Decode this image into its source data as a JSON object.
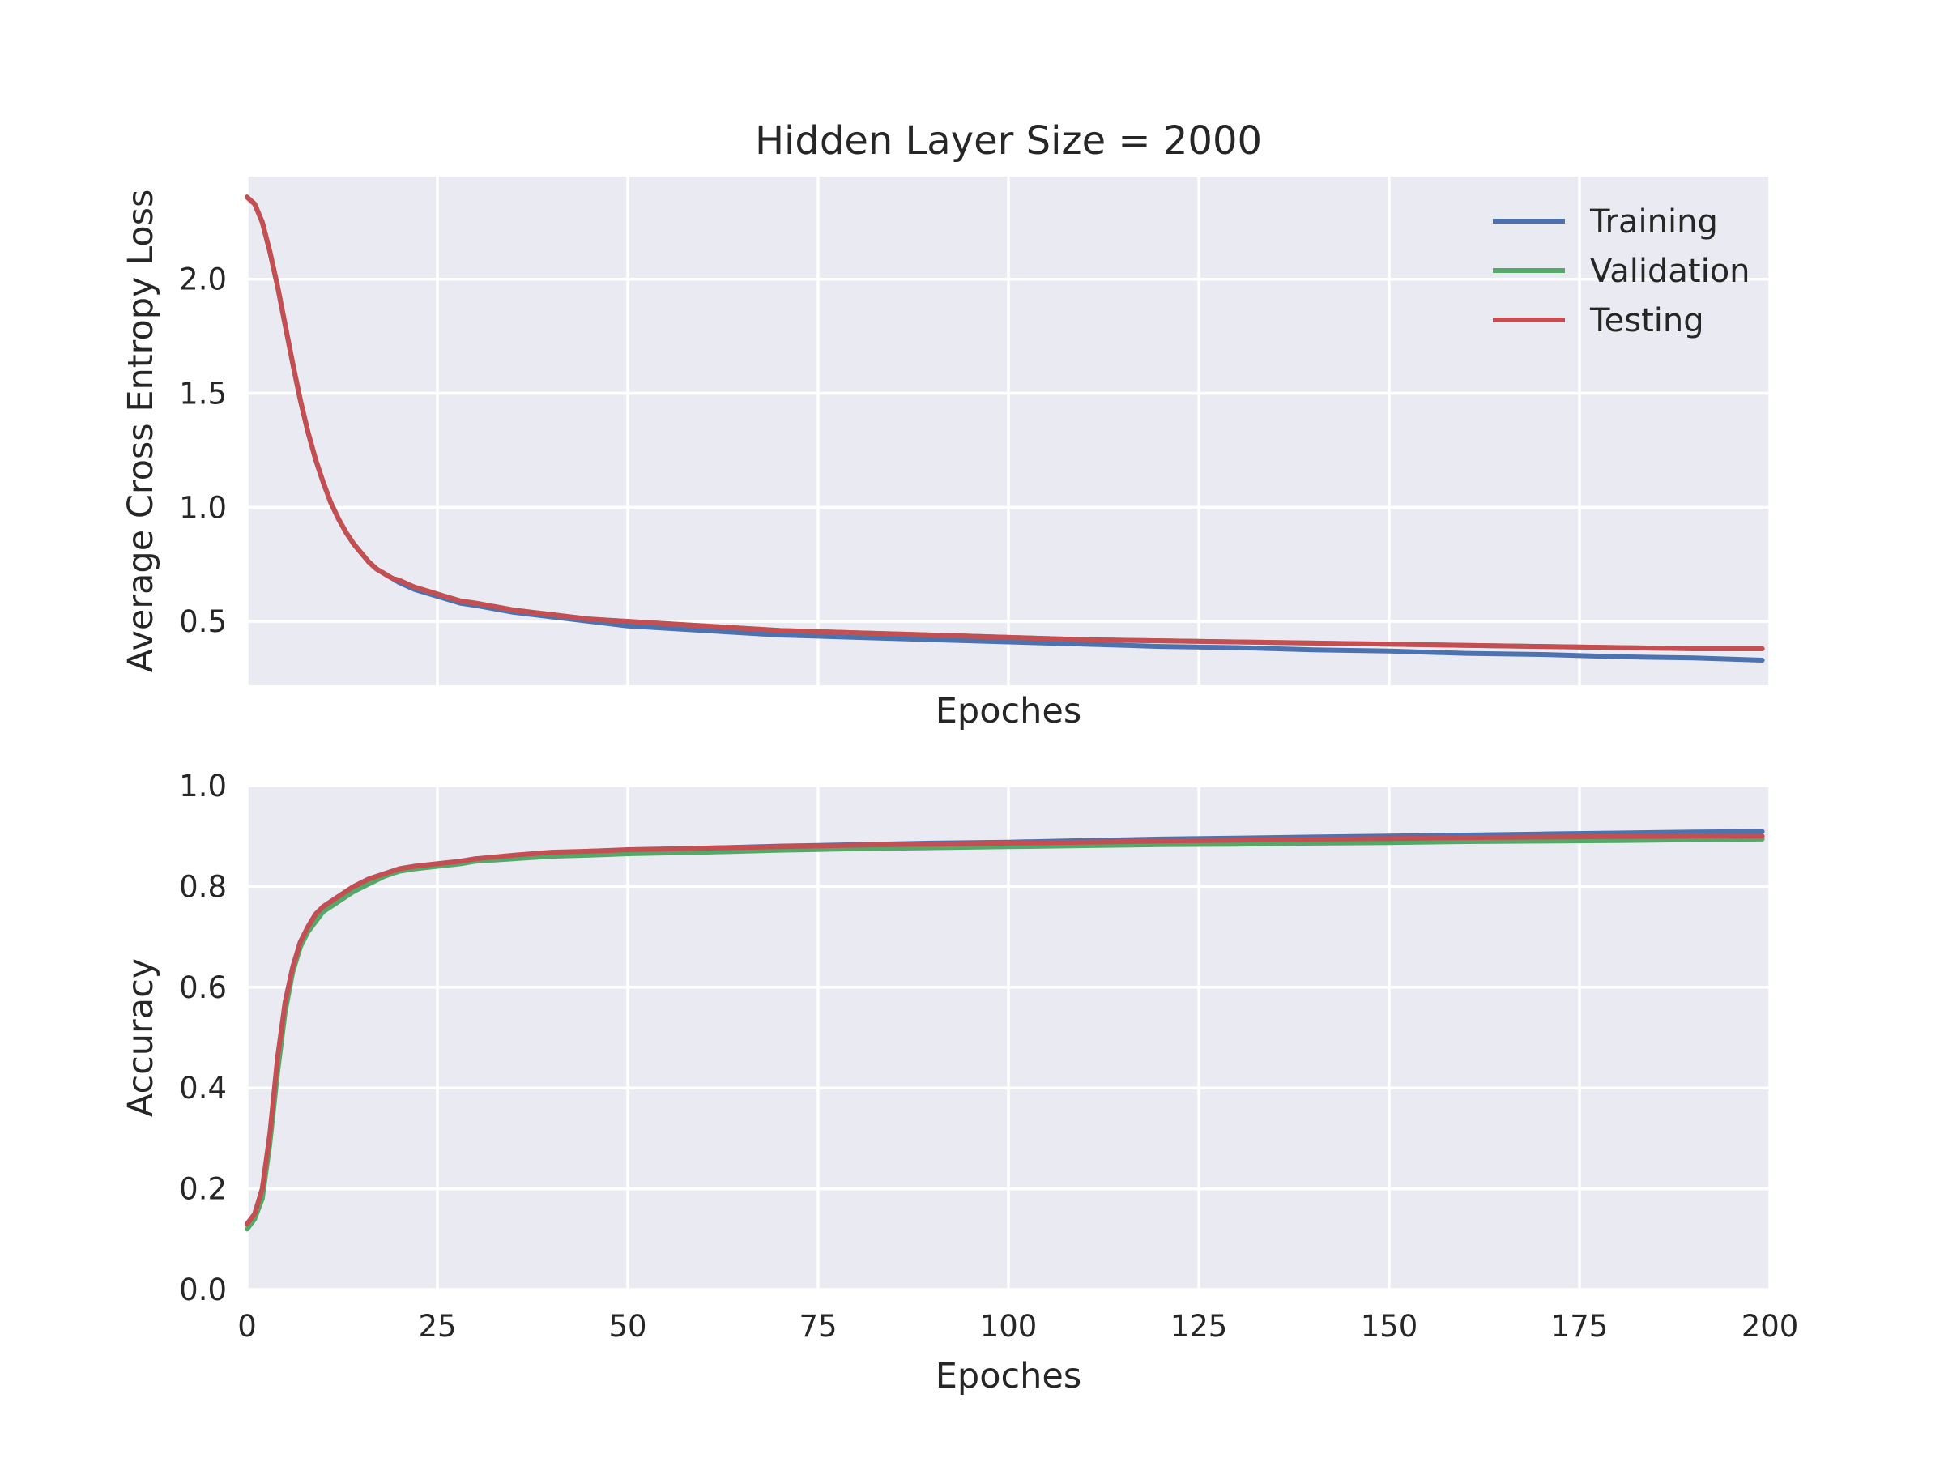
{
  "chart_data": [
    {
      "type": "line",
      "title": "Hidden Layer Size = 2000",
      "xlabel": "Epoches",
      "ylabel": "Average Cross Entropy Loss",
      "xlim": [
        0,
        200
      ],
      "ylim": [
        0.22,
        2.45
      ],
      "xticks": [
        0,
        25,
        50,
        75,
        100,
        125,
        150,
        175,
        200
      ],
      "xtick_labels_visible": false,
      "yticks": [
        0.5,
        1.0,
        1.5,
        2.0
      ],
      "ytick_labels": [
        "0.5",
        "1.0",
        "1.5",
        "2.0"
      ],
      "grid": true,
      "legend": "top-right",
      "x": [
        0,
        1,
        2,
        3,
        4,
        5,
        6,
        7,
        8,
        9,
        10,
        11,
        12,
        13,
        14,
        15,
        16,
        17,
        18,
        19,
        20,
        22,
        24,
        26,
        28,
        30,
        35,
        40,
        45,
        50,
        60,
        70,
        80,
        90,
        100,
        110,
        120,
        130,
        140,
        150,
        160,
        170,
        180,
        190,
        199
      ],
      "series": [
        {
          "name": "Training",
          "color": "#4C72B0",
          "values": [
            2.36,
            2.33,
            2.25,
            2.12,
            1.97,
            1.8,
            1.63,
            1.47,
            1.33,
            1.21,
            1.11,
            1.02,
            0.95,
            0.89,
            0.84,
            0.8,
            0.76,
            0.73,
            0.71,
            0.69,
            0.67,
            0.64,
            0.62,
            0.6,
            0.58,
            0.57,
            0.54,
            0.52,
            0.5,
            0.48,
            0.46,
            0.44,
            0.43,
            0.42,
            0.41,
            0.4,
            0.39,
            0.385,
            0.375,
            0.37,
            0.36,
            0.355,
            0.345,
            0.34,
            0.33
          ]
        },
        {
          "name": "Validation",
          "color": "#55A868",
          "values": [
            2.36,
            2.33,
            2.25,
            2.12,
            1.97,
            1.8,
            1.63,
            1.47,
            1.33,
            1.21,
            1.11,
            1.02,
            0.95,
            0.89,
            0.84,
            0.8,
            0.76,
            0.73,
            0.71,
            0.69,
            0.68,
            0.65,
            0.63,
            0.61,
            0.59,
            0.58,
            0.55,
            0.53,
            0.51,
            0.5,
            0.48,
            0.46,
            0.45,
            0.44,
            0.43,
            0.42,
            0.415,
            0.41,
            0.405,
            0.4,
            0.395,
            0.39,
            0.385,
            0.38,
            0.38
          ]
        },
        {
          "name": "Testing",
          "color": "#C44E52",
          "values": [
            2.36,
            2.33,
            2.25,
            2.12,
            1.97,
            1.8,
            1.63,
            1.47,
            1.33,
            1.21,
            1.11,
            1.02,
            0.95,
            0.89,
            0.84,
            0.8,
            0.76,
            0.73,
            0.71,
            0.69,
            0.68,
            0.65,
            0.63,
            0.61,
            0.59,
            0.58,
            0.55,
            0.53,
            0.51,
            0.5,
            0.48,
            0.46,
            0.45,
            0.44,
            0.43,
            0.42,
            0.415,
            0.41,
            0.405,
            0.4,
            0.395,
            0.39,
            0.385,
            0.38,
            0.38
          ]
        }
      ]
    },
    {
      "type": "line",
      "title": "",
      "xlabel": "Epoches",
      "ylabel": "Accuracy",
      "xlim": [
        0,
        200
      ],
      "ylim": [
        0.0,
        1.0
      ],
      "xticks": [
        0,
        25,
        50,
        75,
        100,
        125,
        150,
        175,
        200
      ],
      "xtick_labels": [
        "0",
        "25",
        "50",
        "75",
        "100",
        "125",
        "150",
        "175",
        "200"
      ],
      "yticks": [
        0.0,
        0.2,
        0.4,
        0.6,
        0.8,
        1.0
      ],
      "ytick_labels": [
        "0.0",
        "0.2",
        "0.4",
        "0.6",
        "0.8",
        "1.0"
      ],
      "grid": true,
      "x": [
        0,
        1,
        2,
        3,
        4,
        5,
        6,
        7,
        8,
        9,
        10,
        12,
        14,
        16,
        18,
        20,
        22,
        25,
        28,
        30,
        35,
        40,
        45,
        50,
        60,
        70,
        80,
        90,
        100,
        110,
        120,
        130,
        140,
        150,
        160,
        170,
        180,
        190,
        199
      ],
      "series": [
        {
          "name": "Training",
          "color": "#4C72B0",
          "values": [
            0.13,
            0.15,
            0.2,
            0.3,
            0.45,
            0.57,
            0.64,
            0.69,
            0.72,
            0.745,
            0.76,
            0.78,
            0.8,
            0.815,
            0.825,
            0.835,
            0.84,
            0.845,
            0.85,
            0.855,
            0.86,
            0.865,
            0.87,
            0.872,
            0.876,
            0.88,
            0.883,
            0.886,
            0.888,
            0.891,
            0.894,
            0.896,
            0.898,
            0.9,
            0.902,
            0.904,
            0.906,
            0.908,
            0.909
          ]
        },
        {
          "name": "Validation",
          "color": "#55A868",
          "values": [
            0.12,
            0.14,
            0.18,
            0.29,
            0.43,
            0.55,
            0.63,
            0.68,
            0.71,
            0.73,
            0.75,
            0.77,
            0.79,
            0.805,
            0.82,
            0.83,
            0.835,
            0.84,
            0.845,
            0.85,
            0.855,
            0.86,
            0.862,
            0.865,
            0.868,
            0.872,
            0.875,
            0.877,
            0.879,
            0.881,
            0.883,
            0.884,
            0.886,
            0.887,
            0.889,
            0.89,
            0.891,
            0.893,
            0.894
          ]
        },
        {
          "name": "Testing",
          "color": "#C44E52",
          "values": [
            0.13,
            0.15,
            0.2,
            0.31,
            0.46,
            0.57,
            0.64,
            0.69,
            0.72,
            0.745,
            0.76,
            0.78,
            0.8,
            0.815,
            0.825,
            0.835,
            0.84,
            0.845,
            0.85,
            0.855,
            0.862,
            0.868,
            0.87,
            0.873,
            0.876,
            0.879,
            0.882,
            0.884,
            0.886,
            0.888,
            0.89,
            0.892,
            0.894,
            0.895,
            0.897,
            0.898,
            0.899,
            0.9,
            0.9
          ]
        }
      ]
    }
  ]
}
